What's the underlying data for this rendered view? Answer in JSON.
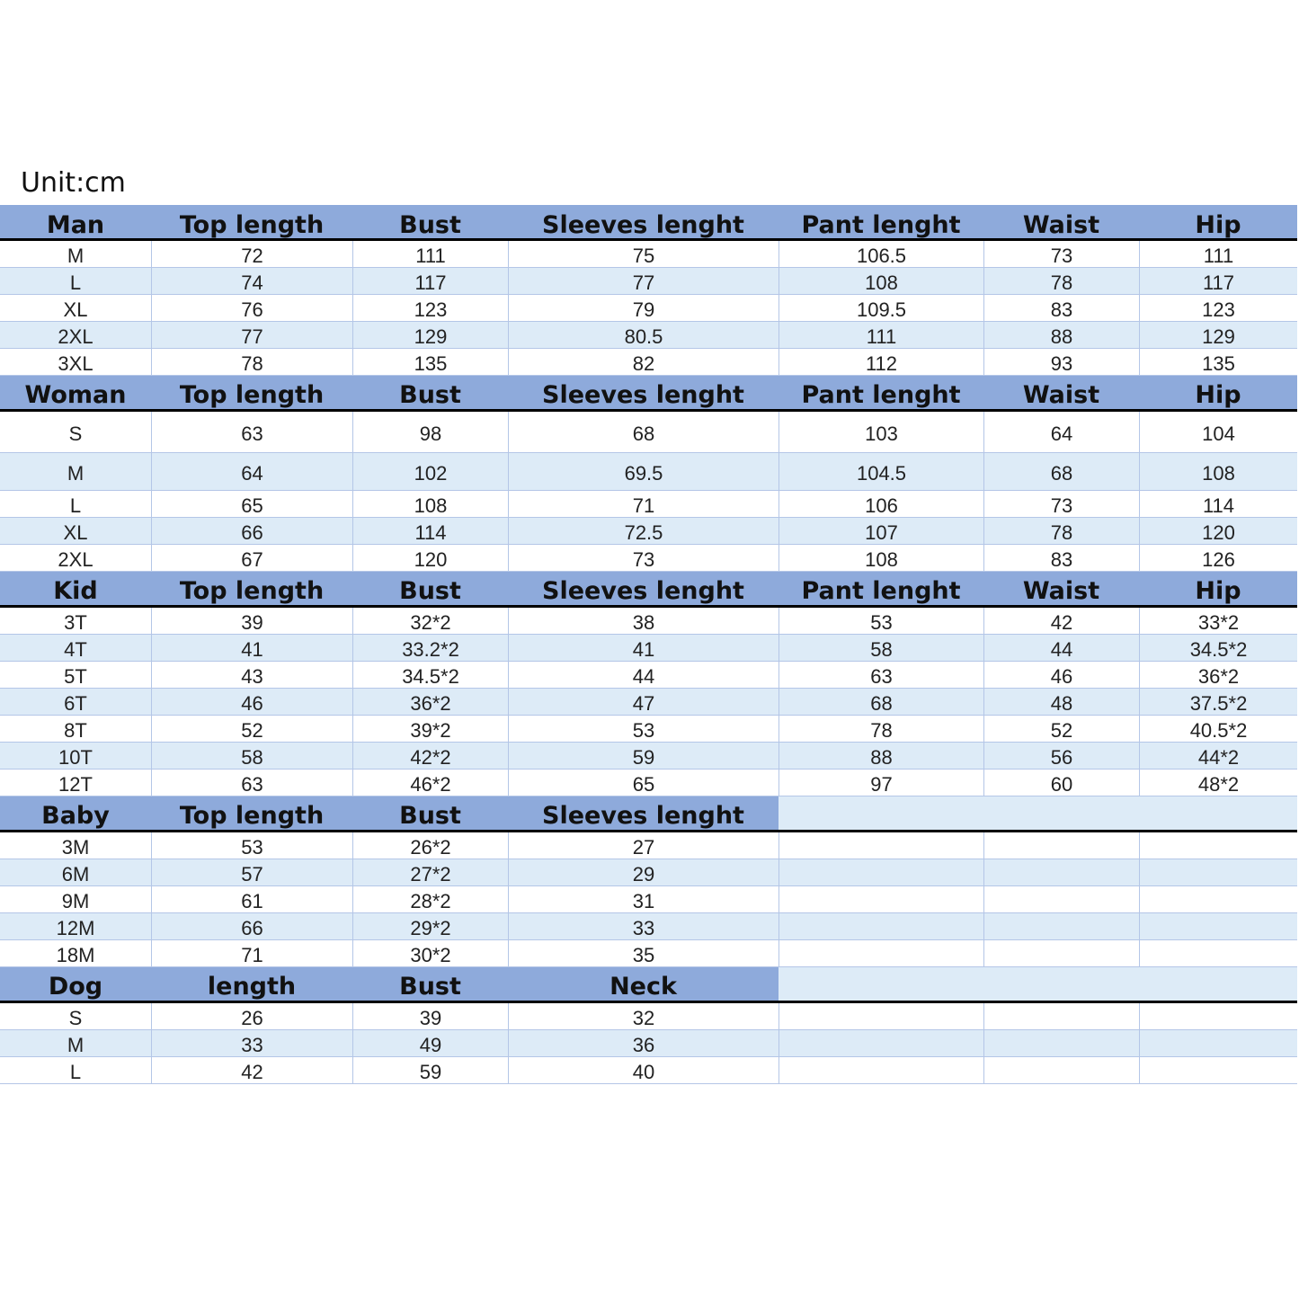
{
  "unit_label": "Unit:cm",
  "sections": [
    {
      "headers": [
        "Man",
        "Top length",
        "Bust",
        "Sleeves lenght",
        "Pant lenght",
        "Waist",
        "Hip"
      ],
      "rows": [
        [
          "M",
          "72",
          "111",
          "75",
          "106.5",
          "73",
          "111"
        ],
        [
          "L",
          "74",
          "117",
          "77",
          "108",
          "78",
          "117"
        ],
        [
          "XL",
          "76",
          "123",
          "79",
          "109.5",
          "83",
          "123"
        ],
        [
          "2XL",
          "77",
          "129",
          "80.5",
          "111",
          "88",
          "129"
        ],
        [
          "3XL",
          "78",
          "135",
          "82",
          "112",
          "93",
          "135"
        ]
      ]
    },
    {
      "headers": [
        "Woman",
        "Top length",
        "Bust",
        "Sleeves lenght",
        "Pant lenght",
        "Waist",
        "Hip"
      ],
      "rows": [
        [
          "S",
          "63",
          "98",
          "68",
          "103",
          "64",
          "104"
        ],
        [
          "M",
          "64",
          "102",
          "69.5",
          "104.5",
          "68",
          "108"
        ],
        [
          "L",
          "65",
          "108",
          "71",
          "106",
          "73",
          "114"
        ],
        [
          "XL",
          "66",
          "114",
          "72.5",
          "107",
          "78",
          "120"
        ],
        [
          "2XL",
          "67",
          "120",
          "73",
          "108",
          "83",
          "126"
        ]
      ]
    },
    {
      "headers": [
        "Kid",
        "Top length",
        "Bust",
        "Sleeves lenght",
        "Pant lenght",
        "Waist",
        "Hip"
      ],
      "rows": [
        [
          "3T",
          "39",
          "32*2",
          "38",
          "53",
          "42",
          "33*2"
        ],
        [
          "4T",
          "41",
          "33.2*2",
          "41",
          "58",
          "44",
          "34.5*2"
        ],
        [
          "5T",
          "43",
          "34.5*2",
          "44",
          "63",
          "46",
          "36*2"
        ],
        [
          "6T",
          "46",
          "36*2",
          "47",
          "68",
          "48",
          "37.5*2"
        ],
        [
          "8T",
          "52",
          "39*2",
          "53",
          "78",
          "52",
          "40.5*2"
        ],
        [
          "10T",
          "58",
          "42*2",
          "59",
          "88",
          "56",
          "44*2"
        ],
        [
          "12T",
          "63",
          "46*2",
          "65",
          "97",
          "60",
          "48*2"
        ]
      ]
    },
    {
      "headers": [
        "Baby",
        "Top length",
        "Bust",
        "Sleeves lenght"
      ],
      "rows": [
        [
          "3M",
          "53",
          "26*2",
          "27",
          "",
          "",
          ""
        ],
        [
          "6M",
          "57",
          "27*2",
          "29",
          "",
          "",
          ""
        ],
        [
          "9M",
          "61",
          "28*2",
          "31",
          "",
          "",
          ""
        ],
        [
          "12M",
          "66",
          "29*2",
          "33",
          "",
          "",
          ""
        ],
        [
          "18M",
          "71",
          "30*2",
          "35",
          "",
          "",
          ""
        ]
      ]
    },
    {
      "headers": [
        "Dog",
        "length",
        "Bust",
        "Neck"
      ],
      "rows": [
        [
          "S",
          "26",
          "39",
          "32",
          "",
          "",
          ""
        ],
        [
          "M",
          "33",
          "49",
          "36",
          "",
          "",
          ""
        ],
        [
          "L",
          "42",
          "59",
          "40",
          "",
          "",
          ""
        ]
      ]
    }
  ]
}
